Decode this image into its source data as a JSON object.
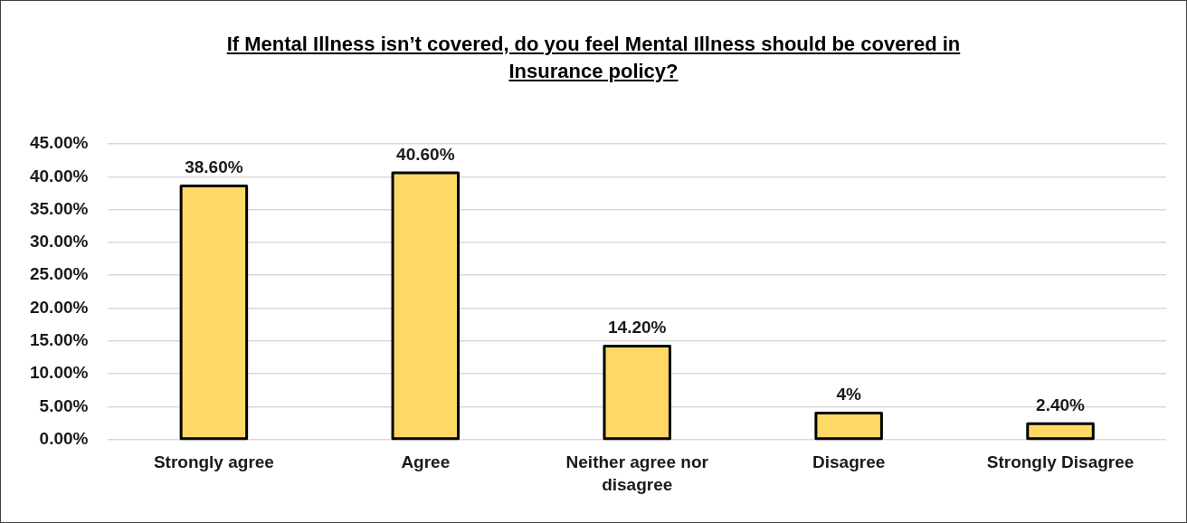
{
  "chart_data": {
    "type": "bar",
    "title": "If Mental Illness isn’t covered, do you feel Mental Illness should be covered in Insurance policy?",
    "categories": [
      "Strongly agree",
      "Agree",
      "Neither agree nor disagree",
      "Disagree",
      "Strongly Disagree"
    ],
    "values": [
      38.6,
      40.6,
      14.2,
      4,
      2.4
    ],
    "color": "#ffd966",
    "value_labels": [
      "38.60%",
      "40.60%",
      "14.20%",
      "4%",
      "2.40%"
    ],
    "ylim": [
      0,
      45
    ],
    "yticks": [
      {
        "value": 0,
        "label": "0.00%"
      },
      {
        "value": 5,
        "label": "5.00%"
      },
      {
        "value": 10,
        "label": "10.00%"
      },
      {
        "value": 15,
        "label": "15.00%"
      },
      {
        "value": 20,
        "label": "20.00%"
      },
      {
        "value": 25,
        "label": "25.00%"
      },
      {
        "value": 30,
        "label": "30.00%"
      },
      {
        "value": 35,
        "label": "35.00%"
      },
      {
        "value": 40,
        "label": "40.00%"
      },
      {
        "value": 45,
        "label": "45.00%"
      }
    ],
    "grid": "y"
  }
}
